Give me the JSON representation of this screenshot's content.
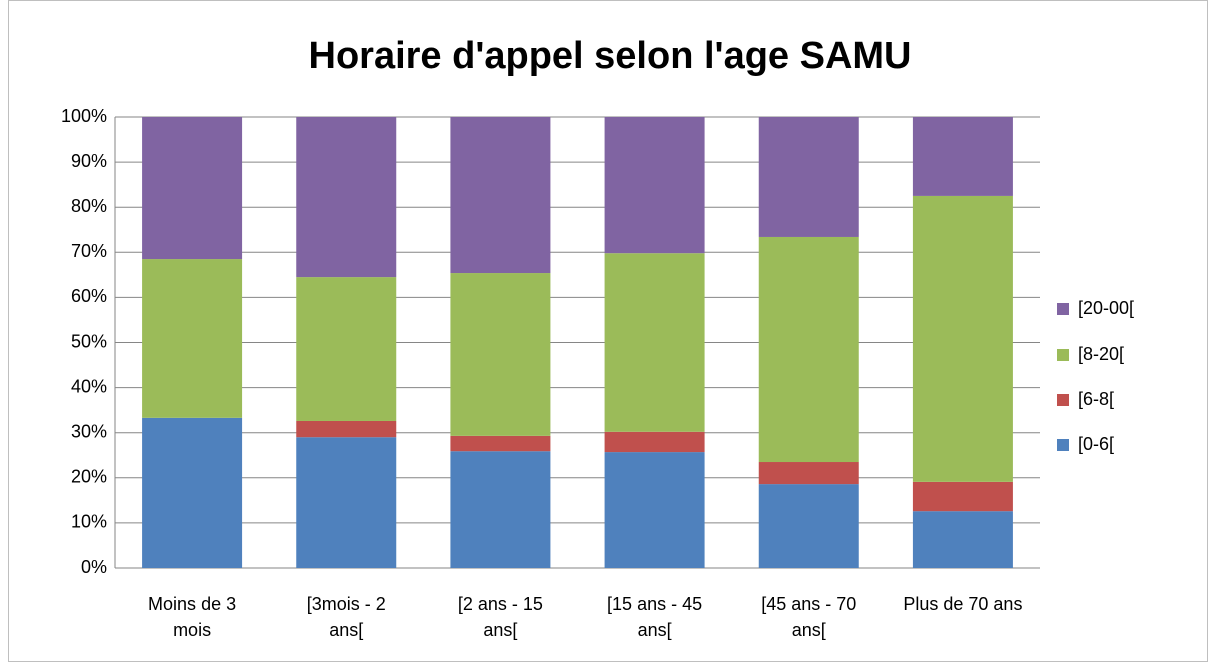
{
  "chart_data": {
    "type": "stacked_bar",
    "title": "Horaire d'appel selon l'age SAMU",
    "categories": [
      "Moins de 3\nmois",
      "[3mois - 2\nans[",
      "[2 ans - 15\nans[",
      "[15 ans - 45\nans[",
      "[45 ans - 70\nans[",
      "Plus de 70 ans"
    ],
    "series": [
      {
        "name": "[0-6[",
        "color": "#4f81bd",
        "values": [
          33.3,
          29.0,
          25.9,
          25.7,
          18.6,
          12.6
        ]
      },
      {
        "name": "[6-8[",
        "color": "#c0504d",
        "values": [
          0,
          3.6,
          3.4,
          4.5,
          4.9,
          6.5
        ]
      },
      {
        "name": "[8-20[",
        "color": "#9bbb59",
        "values": [
          35.2,
          31.9,
          36.1,
          39.6,
          49.9,
          63.4
        ]
      },
      {
        "name": "[20-00[",
        "color": "#8064a2",
        "values": [
          31.5,
          35.5,
          34.6,
          30.2,
          26.6,
          17.5
        ]
      }
    ],
    "ylim": [
      0,
      100
    ],
    "yticks": [
      {
        "value": 0,
        "label": "0%"
      },
      {
        "value": 10,
        "label": "10%"
      },
      {
        "value": 20,
        "label": "20%"
      },
      {
        "value": 30,
        "label": "30%"
      },
      {
        "value": 40,
        "label": "40%"
      },
      {
        "value": 50,
        "label": "50%"
      },
      {
        "value": 60,
        "label": "60%"
      },
      {
        "value": 70,
        "label": "70%"
      },
      {
        "value": 80,
        "label": "80%"
      },
      {
        "value": 90,
        "label": "90%"
      },
      {
        "value": 100,
        "label": "100%"
      }
    ],
    "grid": true,
    "legend": "right"
  }
}
